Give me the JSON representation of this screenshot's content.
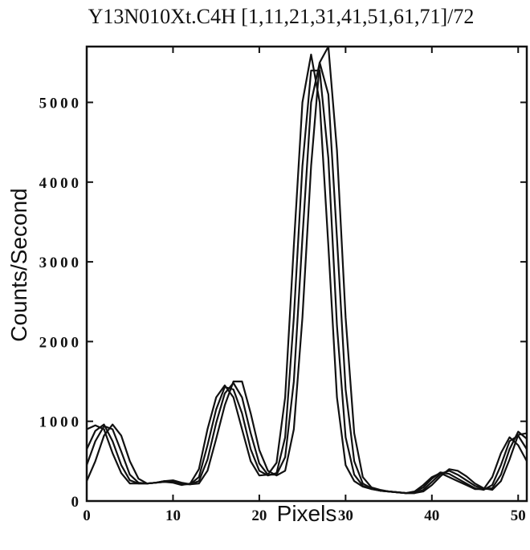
{
  "chart_data": {
    "type": "line",
    "title": "Y13N010Xt.C4H [1,11,21,31,41,51,61,71]/72",
    "xlabel": "Pixels",
    "ylabel": "Counts/Second",
    "xlim": [
      0,
      51
    ],
    "ylim": [
      0,
      5700
    ],
    "xticks": [
      0,
      10,
      20,
      30,
      40,
      50
    ],
    "yticks": [
      0,
      1000,
      2000,
      3000,
      4000,
      5000
    ],
    "grid": false,
    "line_color": "#111111",
    "series": [
      {
        "x": [
          0,
          1,
          2,
          3,
          4,
          5,
          6,
          7,
          8,
          9,
          10,
          11,
          12,
          13,
          14,
          15,
          16,
          17,
          18,
          19,
          20,
          21,
          22,
          23,
          24,
          25,
          26,
          27,
          28,
          29,
          30,
          31,
          32,
          33,
          34,
          35,
          36,
          37,
          38,
          39,
          40,
          41,
          42,
          43,
          44,
          45,
          46,
          47,
          48,
          49,
          50,
          51
        ],
        "values": [
          900,
          950,
          900,
          600,
          350,
          220,
          220,
          220,
          230,
          240,
          230,
          200,
          220,
          400,
          900,
          1300,
          1450,
          1300,
          900,
          500,
          320,
          330,
          480,
          1300,
          3200,
          5000,
          5600,
          5000,
          3200,
          1300,
          450,
          250,
          180,
          150,
          130,
          120,
          110,
          100,
          120,
          200,
          300,
          350,
          300,
          250,
          200,
          150,
          150,
          300,
          600,
          800,
          700,
          500
        ]
      },
      {
        "x": [
          0,
          1,
          2,
          3,
          4,
          5,
          6,
          7,
          8,
          9,
          10,
          11,
          12,
          13,
          14,
          15,
          16,
          17,
          18,
          19,
          20,
          21,
          22,
          23,
          24,
          25,
          26,
          27,
          28,
          29,
          30,
          31,
          32,
          33,
          34,
          35,
          36,
          37,
          38,
          39,
          40,
          41,
          42,
          43,
          44,
          45,
          46,
          47,
          48,
          49,
          50,
          51
        ],
        "values": [
          650,
          880,
          960,
          750,
          450,
          260,
          220,
          220,
          230,
          240,
          240,
          210,
          210,
          300,
          700,
          1150,
          1430,
          1400,
          1100,
          650,
          380,
          320,
          350,
          800,
          2300,
          4200,
          5400,
          5400,
          4300,
          2200,
          800,
          330,
          190,
          150,
          130,
          120,
          110,
          100,
          110,
          170,
          280,
          360,
          340,
          280,
          220,
          160,
          140,
          200,
          450,
          750,
          820,
          650
        ]
      },
      {
        "x": [
          0,
          1,
          2,
          3,
          4,
          5,
          6,
          7,
          8,
          9,
          10,
          11,
          12,
          13,
          14,
          15,
          16,
          17,
          18,
          19,
          20,
          21,
          22,
          23,
          24,
          25,
          26,
          27,
          28,
          29,
          30,
          31,
          32,
          33,
          34,
          35,
          36,
          37,
          38,
          39,
          40,
          41,
          42,
          43,
          44,
          45,
          46,
          47,
          48,
          49,
          50,
          51
        ],
        "values": [
          450,
          750,
          940,
          900,
          620,
          330,
          230,
          220,
          230,
          250,
          250,
          220,
          210,
          250,
          520,
          980,
          1350,
          1480,
          1300,
          850,
          470,
          330,
          330,
          550,
          1500,
          3300,
          5000,
          5500,
          5100,
          3300,
          1400,
          500,
          220,
          160,
          130,
          120,
          110,
          100,
          100,
          140,
          240,
          340,
          380,
          330,
          260,
          190,
          150,
          160,
          330,
          650,
          870,
          780
        ]
      },
      {
        "x": [
          0,
          1,
          2,
          3,
          4,
          5,
          6,
          7,
          8,
          9,
          10,
          11,
          12,
          13,
          14,
          15,
          16,
          17,
          18,
          19,
          20,
          21,
          22,
          23,
          24,
          25,
          26,
          27,
          28,
          29,
          30,
          31,
          32,
          33,
          34,
          35,
          36,
          37,
          38,
          39,
          40,
          41,
          42,
          43,
          44,
          45,
          46,
          47,
          48,
          49,
          50,
          51
        ],
        "values": [
          250,
          500,
          820,
          960,
          820,
          500,
          280,
          220,
          230,
          250,
          260,
          230,
          210,
          220,
          380,
          780,
          1200,
          1500,
          1500,
          1100,
          640,
          380,
          320,
          380,
          900,
          2300,
          4200,
          5500,
          5700,
          4400,
          2300,
          850,
          300,
          170,
          140,
          120,
          110,
          100,
          100,
          120,
          200,
          310,
          400,
          380,
          310,
          220,
          160,
          140,
          250,
          520,
          830,
          850
        ]
      }
    ]
  }
}
